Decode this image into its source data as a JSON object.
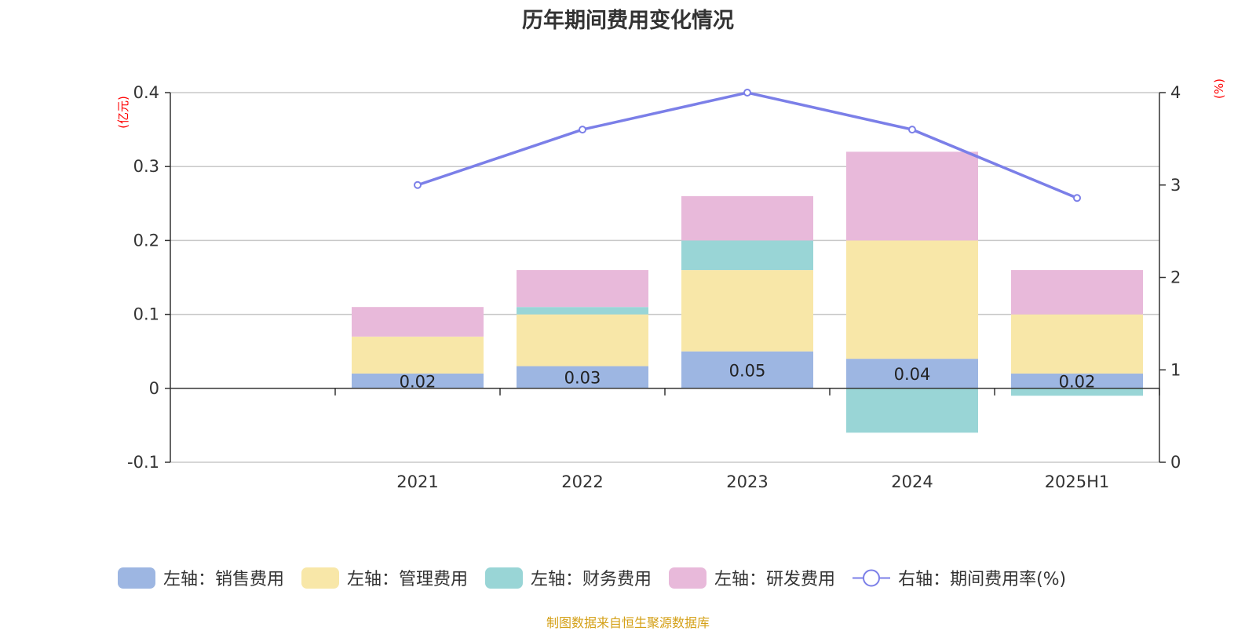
{
  "chart_data": {
    "type": "bar",
    "title": "历年期间费用变化情况",
    "categories": [
      "2021",
      "2022",
      "2023",
      "2024",
      "2025H1"
    ],
    "left_axis": {
      "unit": "(亿元)",
      "ylim": [
        -0.1,
        0.4
      ],
      "ticks": [
        "0.4",
        "0.3",
        "0.2",
        "0.1",
        "0",
        "-0.1"
      ]
    },
    "right_axis": {
      "unit": "(%)",
      "ylim": [
        0,
        4
      ],
      "ticks": [
        "4",
        "3",
        "2",
        "1",
        "0"
      ]
    },
    "series": [
      {
        "name": "左轴：销售费用",
        "kind": "bar",
        "axis": "left",
        "color": "#9db6e2",
        "values": [
          0.02,
          0.03,
          0.05,
          0.04,
          0.02
        ],
        "labels": [
          "0.02",
          "0.03",
          "0.05",
          "0.04",
          "0.02"
        ]
      },
      {
        "name": "左轴：管理费用",
        "kind": "bar",
        "axis": "left",
        "color": "#f8e7a8",
        "values": [
          0.05,
          0.07,
          0.11,
          0.16,
          0.08
        ]
      },
      {
        "name": "左轴：财务费用",
        "kind": "bar",
        "axis": "left",
        "color": "#99d5d6",
        "values": [
          0.0,
          0.01,
          0.04,
          -0.06,
          -0.01
        ]
      },
      {
        "name": "左轴：研发费用",
        "kind": "bar",
        "axis": "left",
        "color": "#e8b9da",
        "values": [
          0.04,
          0.05,
          0.06,
          0.12,
          0.06
        ]
      },
      {
        "name": "右轴：期间费用率(%)",
        "kind": "line",
        "axis": "right",
        "color": "#7b7fe8",
        "values": [
          3.0,
          3.6,
          4.0,
          3.6,
          2.86
        ]
      }
    ],
    "grid": true,
    "legend_position": "bottom"
  },
  "source_note": "制图数据来自恒生聚源数据库",
  "colors": {
    "source_note": "#d4a017",
    "axis_unit": "#ff0000"
  }
}
